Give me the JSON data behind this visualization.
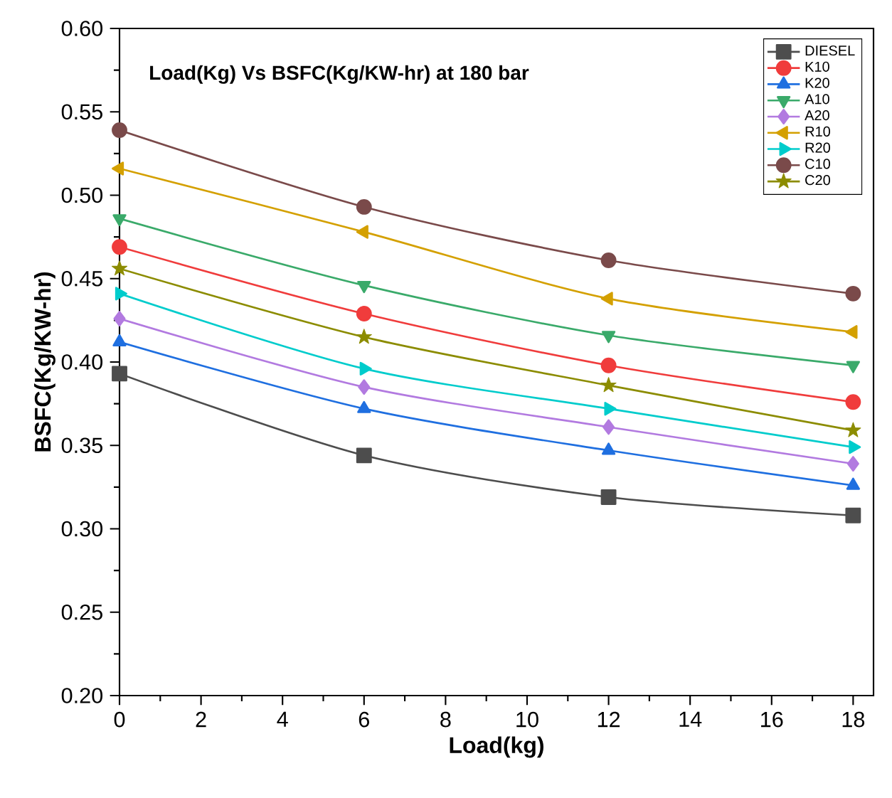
{
  "chart_data": {
    "type": "line",
    "title": "Load(Kg) Vs BSFC(Kg/KW-hr)  at 180 bar",
    "xlabel": "Load(kg)",
    "ylabel": "BSFC(Kg/KW-hr)",
    "x": [
      0,
      6,
      12,
      18
    ],
    "xlim": [
      0,
      18.5
    ],
    "xticks": [
      0,
      2,
      4,
      6,
      8,
      10,
      12,
      14,
      16,
      18
    ],
    "ylim": [
      0.2,
      0.6
    ],
    "yticks": [
      {
        "value": 0.2,
        "label": "0.20"
      },
      0.25,
      {
        "value": 0.3,
        "label": "0.30"
      },
      0.35,
      {
        "value": 0.4,
        "label": "0.40"
      },
      0.45,
      {
        "value": 0.5,
        "label": "0.50"
      },
      0.55,
      {
        "value": 0.6,
        "label": "0.60"
      }
    ],
    "grid": false,
    "legend": "top right",
    "line_style": "solid",
    "series": [
      {
        "name": "DIESEL",
        "color": "#4d4d4d",
        "marker": "square",
        "values": [
          0.393,
          0.344,
          0.319,
          0.308
        ]
      },
      {
        "name": "K10",
        "color": "#f03c3c",
        "marker": "circle",
        "values": [
          0.469,
          0.429,
          0.398,
          0.376
        ]
      },
      {
        "name": "K20",
        "color": "#1f6fe0",
        "marker": "triangle",
        "values": [
          0.412,
          0.372,
          0.347,
          0.326
        ]
      },
      {
        "name": "A10",
        "color": "#3aaa6a",
        "marker": "triangle-down",
        "values": [
          0.486,
          0.446,
          0.416,
          0.398
        ]
      },
      {
        "name": "A20",
        "color": "#b27ae0",
        "marker": "diamond",
        "values": [
          0.426,
          0.385,
          0.361,
          0.339
        ]
      },
      {
        "name": "R10",
        "color": "#d4a000",
        "marker": "triangle-left",
        "values": [
          0.516,
          0.478,
          0.438,
          0.418
        ]
      },
      {
        "name": "R20",
        "color": "#00cccc",
        "marker": "triangle-right",
        "values": [
          0.441,
          0.396,
          0.372,
          0.349
        ]
      },
      {
        "name": "C10",
        "color": "#7a4a4a",
        "marker": "circle",
        "values": [
          0.539,
          0.493,
          0.461,
          0.441
        ]
      },
      {
        "name": "C20",
        "color": "#8c8c00",
        "marker": "star",
        "values": [
          0.456,
          0.415,
          0.386,
          0.359
        ]
      }
    ]
  }
}
